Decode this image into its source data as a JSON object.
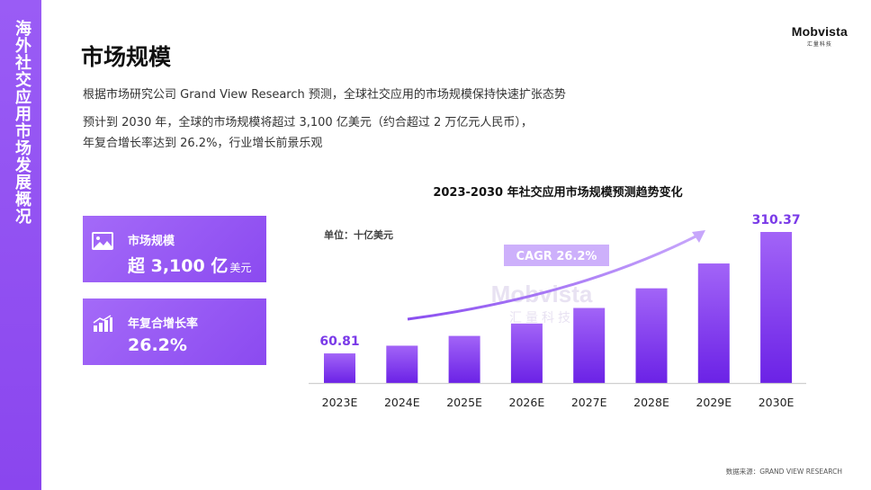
{
  "sidebar": {
    "title": "海外社交应用市场发展概况"
  },
  "logo": {
    "name": "Mobvista",
    "sub": "汇量科技"
  },
  "page_title": "市场规模",
  "description": {
    "line1": "根据市场研究公司 Grand View Research 预测，全球社交应用的市场规模保持快速扩张态势",
    "line2": "预计到 2030 年，全球的市场规模将超过 3,100 亿美元（约合超过 2 万亿元人民币），",
    "line3": "年复合增长率达到 26.2%，行业增长前景乐观"
  },
  "cards": [
    {
      "label": "市场规模",
      "value": "超 3,100 亿",
      "unit": "美元",
      "icon": "image-icon"
    },
    {
      "label": "年复合增长率",
      "value": "26.2%",
      "unit": "",
      "icon": "growth-chart-icon"
    }
  ],
  "source": "数据来源：GRAND VIEW RESEARCH",
  "colors": {
    "accent": "#8b4af0",
    "sidebar": "#9a5cf5",
    "bar_top": "#a264f7",
    "bar_bottom": "#6b22e6",
    "cagr_badge": "#cdb0fb"
  },
  "chart_data": {
    "type": "bar",
    "title": "2023-2030 年社交应用市场规模预测趋势变化",
    "unit_label": "单位：十亿美元",
    "categories": [
      "2023E",
      "2024E",
      "2025E",
      "2026E",
      "2027E",
      "2028E",
      "2029E",
      "2030E"
    ],
    "values": [
      60.81,
      76.7,
      96.8,
      122.2,
      154.2,
      194.6,
      245.6,
      310.37
    ],
    "data_labels": {
      "2023E": "60.81",
      "2030E": "310.37"
    },
    "annotation": "CAGR 26.2%",
    "watermark": {
      "main": "Mobvista",
      "sub": "汇量科技"
    },
    "ylim": [
      0,
      330
    ],
    "grid": false,
    "legend": "none"
  }
}
